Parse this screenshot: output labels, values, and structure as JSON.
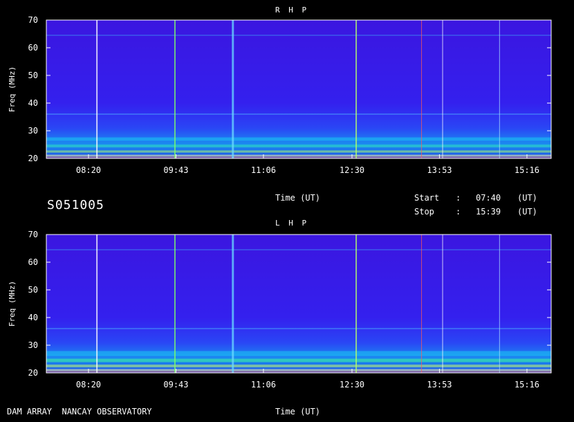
{
  "chart_data": [
    {
      "type": "heatmap",
      "title": "R H P",
      "xlabel": "Time (UT)",
      "ylabel": "Freq (MHz)",
      "xlim": [
        "07:40",
        "15:39"
      ],
      "ylim": [
        20,
        70
      ],
      "x_ticks": [
        "08:20",
        "09:43",
        "11:06",
        "12:30",
        "13:53",
        "15:16"
      ],
      "y_ticks": [
        20,
        30,
        40,
        50,
        60,
        70
      ]
    },
    {
      "type": "heatmap",
      "title": "L H P",
      "xlabel": "Time (UT)",
      "ylabel": "Freq (MHz)",
      "xlim": [
        "07:40",
        "15:39"
      ],
      "ylim": [
        20,
        70
      ],
      "x_ticks": [
        "08:20",
        "09:43",
        "11:06",
        "12:30",
        "13:53",
        "15:16"
      ],
      "y_ticks": [
        20,
        30,
        40,
        50,
        60,
        70
      ]
    }
  ],
  "header": {
    "station_id": "S051005",
    "mid_xlabel": "Time (UT)",
    "start_label": "Start",
    "stop_label": "Stop",
    "colon": ":",
    "start_time": "07:40",
    "stop_time": "15:39",
    "unit": "(UT)"
  },
  "footer": {
    "observatory": "DAM ARRAY  NANCAY OBSERVATORY",
    "xlabel": "Time (UT)"
  },
  "colors": {
    "background": "#000000",
    "spectrum_base": "#3a17e6",
    "axis": "#ffffff"
  }
}
